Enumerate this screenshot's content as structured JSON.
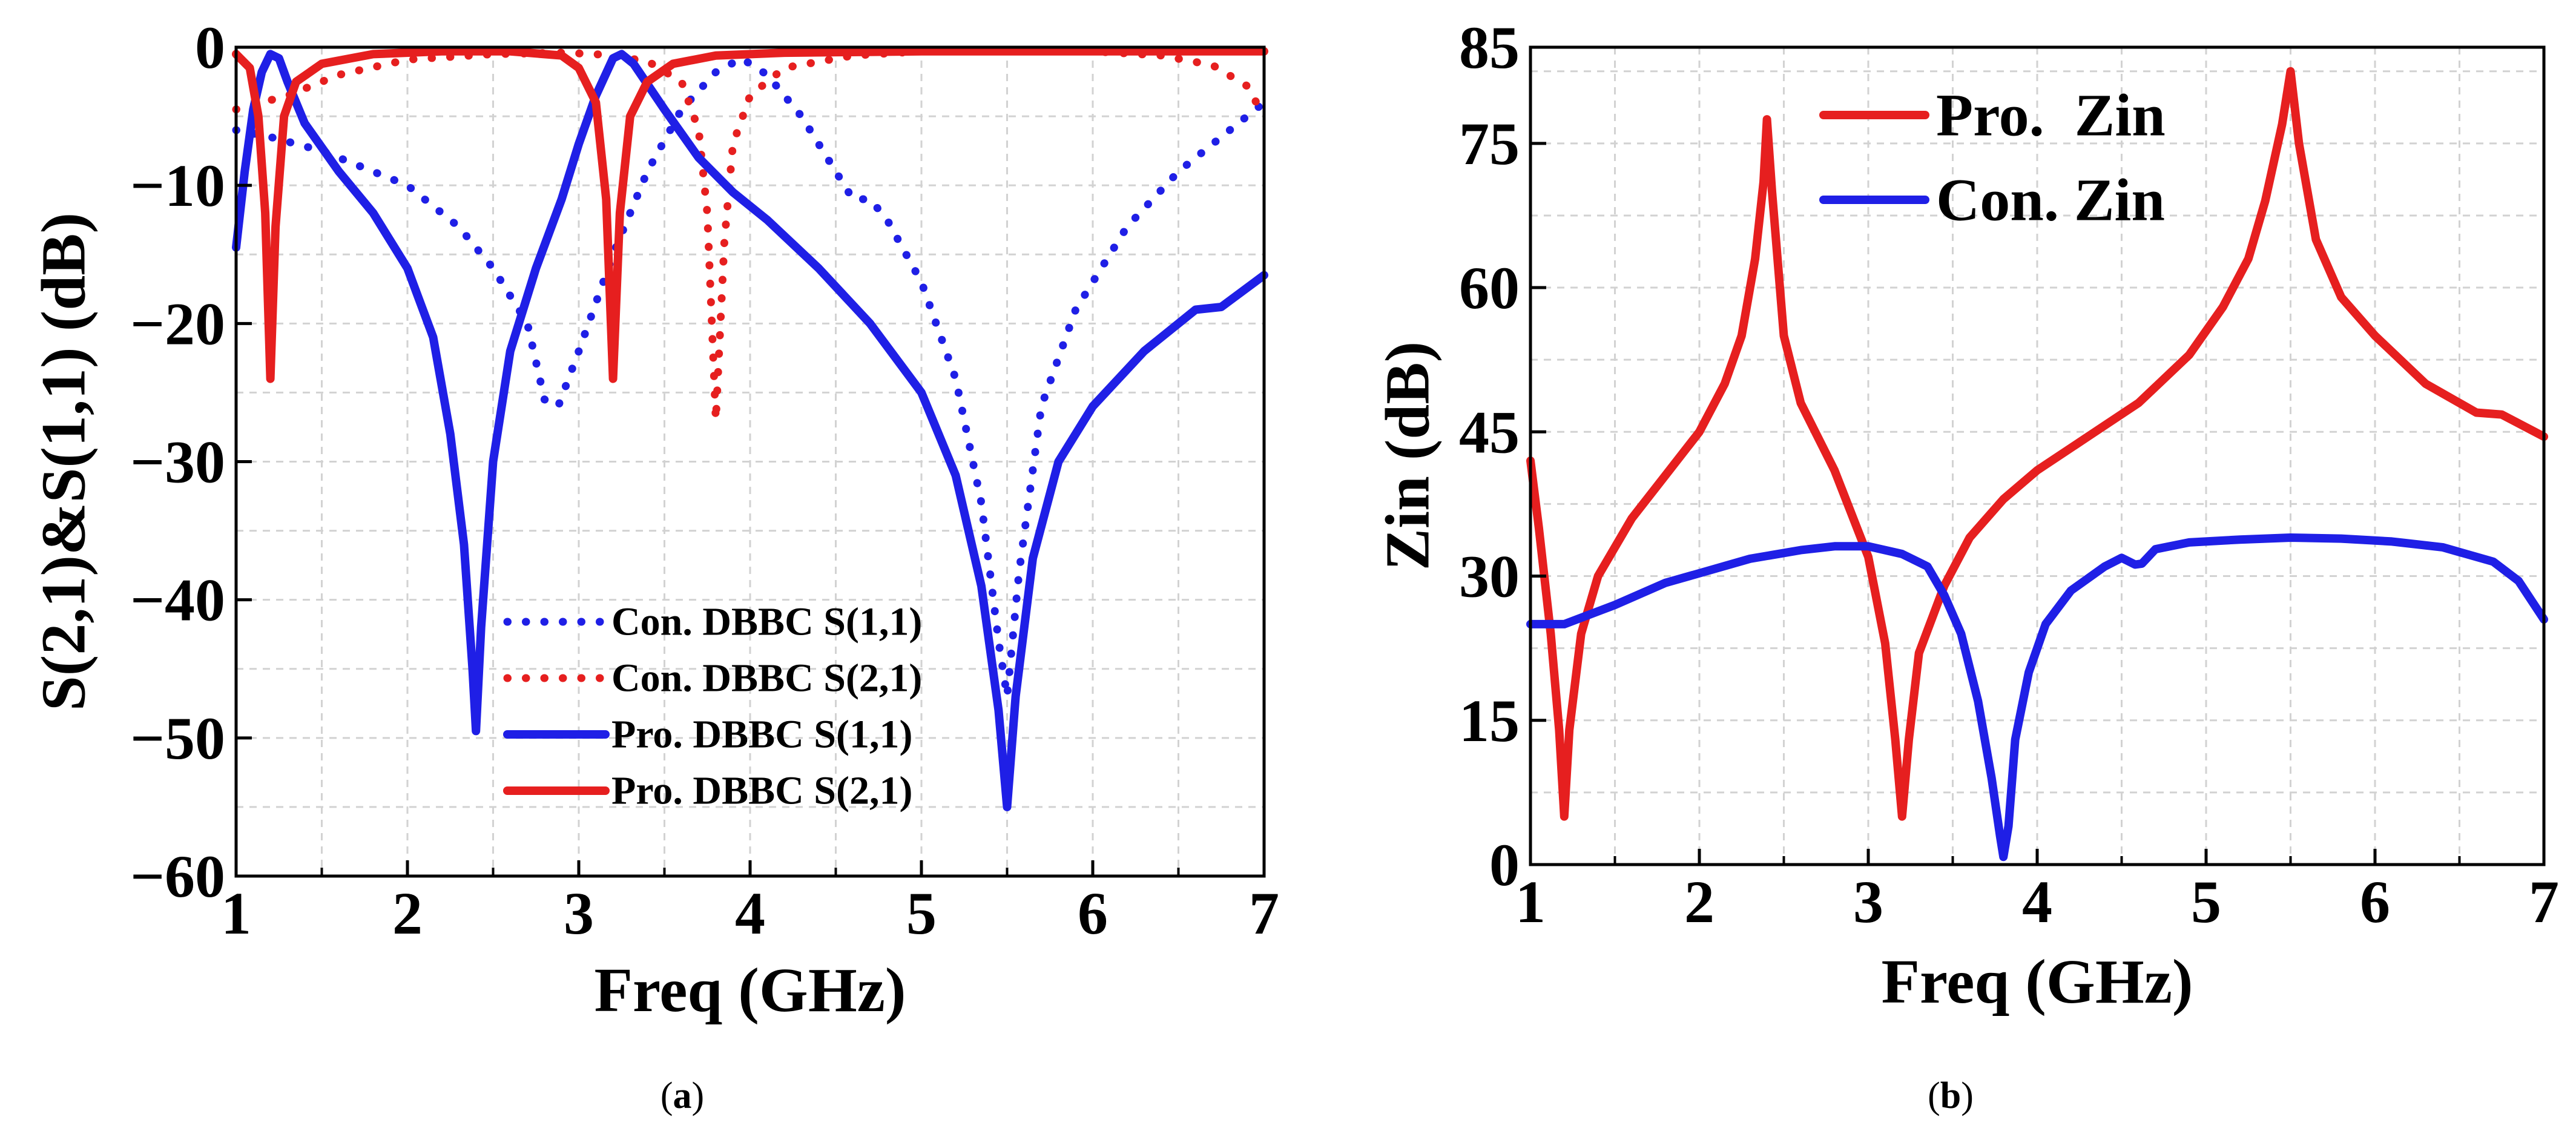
{
  "chart_data": [
    {
      "type": "line",
      "caption": "(a)",
      "caption_letter": "a",
      "xlabel": "Freq (GHz)",
      "ylabel": "S(2,1)&S(1,1) (dB)",
      "xlim": [
        1,
        7
      ],
      "ylim": [
        -60,
        0
      ],
      "xticks": [
        1,
        2,
        3,
        4,
        5,
        6,
        7
      ],
      "yticks": [
        0,
        -10,
        -20,
        -30,
        -40,
        -50,
        -60
      ],
      "ytick_labels": [
        "0",
        "−10",
        "−20",
        "−30",
        "−40",
        "−50",
        "−60"
      ],
      "grid": true,
      "legend_position": "lower-center",
      "series": [
        {
          "name": "Con. DBBC S(1,1)",
          "color": "#1f1fe6",
          "style": "dotted",
          "points": [
            [
              1,
              -6
            ],
            [
              1.2,
              -6.5
            ],
            [
              1.5,
              -7.5
            ],
            [
              2,
              -10
            ],
            [
              2.3,
              -13
            ],
            [
              2.5,
              -16
            ],
            [
              2.7,
              -20
            ],
            [
              2.8,
              -25.5
            ],
            [
              2.88,
              -26
            ],
            [
              3,
              -22
            ],
            [
              3.2,
              -15
            ],
            [
              3.4,
              -9
            ],
            [
              3.6,
              -4.5
            ],
            [
              3.8,
              -1.8
            ],
            [
              3.95,
              -0.8
            ],
            [
              4.1,
              -2
            ],
            [
              4.3,
              -5
            ],
            [
              4.5,
              -9
            ],
            [
              4.6,
              -11
            ],
            [
              4.7,
              -11
            ],
            [
              4.8,
              -12.5
            ],
            [
              5,
              -17
            ],
            [
              5.2,
              -24
            ],
            [
              5.35,
              -33
            ],
            [
              5.45,
              -43
            ],
            [
              5.5,
              -47
            ],
            [
              5.57,
              -38
            ],
            [
              5.7,
              -26
            ],
            [
              5.9,
              -19
            ],
            [
              6.2,
              -13
            ],
            [
              6.5,
              -9
            ],
            [
              6.8,
              -6
            ],
            [
              7,
              -4
            ]
          ]
        },
        {
          "name": "Con. DBBC S(2,1)",
          "color": "#e61f1f",
          "style": "dotted",
          "points": [
            [
              1,
              -4.5
            ],
            [
              1.3,
              -3.5
            ],
            [
              1.6,
              -2
            ],
            [
              2,
              -0.9
            ],
            [
              2.5,
              -0.5
            ],
            [
              2.9,
              -0.4
            ],
            [
              3.1,
              -0.5
            ],
            [
              3.4,
              -1
            ],
            [
              3.6,
              -2.5
            ],
            [
              3.7,
              -6
            ],
            [
              3.75,
              -12
            ],
            [
              3.8,
              -27
            ],
            [
              3.85,
              -14
            ],
            [
              3.9,
              -7
            ],
            [
              4,
              -3.5
            ],
            [
              4.2,
              -1.5
            ],
            [
              4.6,
              -0.6
            ],
            [
              5,
              -0.3
            ],
            [
              5.5,
              -0.2
            ],
            [
              6,
              -0.3
            ],
            [
              6.4,
              -0.6
            ],
            [
              6.7,
              -1.3
            ],
            [
              6.9,
              -2.8
            ],
            [
              7,
              -5
            ]
          ]
        },
        {
          "name": "Pro. DBBC S(1,1)",
          "color": "#1f1fe6",
          "style": "solid",
          "points": [
            [
              1,
              -14.5
            ],
            [
              1.05,
              -9
            ],
            [
              1.1,
              -4.5
            ],
            [
              1.15,
              -1.8
            ],
            [
              1.2,
              -0.5
            ],
            [
              1.25,
              -0.8
            ],
            [
              1.3,
              -2.5
            ],
            [
              1.4,
              -5.5
            ],
            [
              1.6,
              -9
            ],
            [
              1.8,
              -12
            ],
            [
              2,
              -16
            ],
            [
              2.15,
              -21
            ],
            [
              2.25,
              -28
            ],
            [
              2.33,
              -36
            ],
            [
              2.38,
              -45
            ],
            [
              2.4,
              -49.5
            ],
            [
              2.43,
              -42
            ],
            [
              2.5,
              -30
            ],
            [
              2.6,
              -22
            ],
            [
              2.75,
              -16
            ],
            [
              2.9,
              -11
            ],
            [
              3,
              -7
            ],
            [
              3.1,
              -3.5
            ],
            [
              3.2,
              -0.8
            ],
            [
              3.25,
              -0.5
            ],
            [
              3.32,
              -1.2
            ],
            [
              3.5,
              -4.5
            ],
            [
              3.7,
              -8
            ],
            [
              3.9,
              -10.5
            ],
            [
              4.1,
              -12.5
            ],
            [
              4.4,
              -16
            ],
            [
              4.7,
              -20
            ],
            [
              5,
              -25
            ],
            [
              5.2,
              -31
            ],
            [
              5.35,
              -39
            ],
            [
              5.45,
              -48
            ],
            [
              5.5,
              -55
            ],
            [
              5.55,
              -47
            ],
            [
              5.65,
              -37
            ],
            [
              5.8,
              -30
            ],
            [
              6,
              -26
            ],
            [
              6.3,
              -22
            ],
            [
              6.6,
              -19
            ],
            [
              6.75,
              -18.8
            ],
            [
              7,
              -16.5
            ]
          ]
        },
        {
          "name": "Pro. DBBC S(2,1)",
          "color": "#e61f1f",
          "style": "solid",
          "points": [
            [
              1,
              -0.5
            ],
            [
              1.08,
              -1.5
            ],
            [
              1.13,
              -5
            ],
            [
              1.17,
              -12
            ],
            [
              1.2,
              -24
            ],
            [
              1.23,
              -13
            ],
            [
              1.28,
              -5
            ],
            [
              1.35,
              -2.5
            ],
            [
              1.5,
              -1.2
            ],
            [
              1.8,
              -0.5
            ],
            [
              2.2,
              -0.3
            ],
            [
              2.6,
              -0.3
            ],
            [
              2.9,
              -0.6
            ],
            [
              3,
              -1.5
            ],
            [
              3.1,
              -4
            ],
            [
              3.16,
              -11
            ],
            [
              3.2,
              -24
            ],
            [
              3.24,
              -12
            ],
            [
              3.3,
              -5
            ],
            [
              3.4,
              -2.5
            ],
            [
              3.55,
              -1.2
            ],
            [
              3.8,
              -0.6
            ],
            [
              4.2,
              -0.4
            ],
            [
              5,
              -0.3
            ],
            [
              6,
              -0.3
            ],
            [
              7,
              -0.3
            ]
          ]
        }
      ]
    },
    {
      "type": "line",
      "caption": "(b)",
      "caption_letter": "b",
      "xlabel": "Freq (GHz)",
      "ylabel": "Zin (dB)",
      "xlim": [
        1,
        7
      ],
      "ylim": [
        0,
        85
      ],
      "xticks": [
        1,
        2,
        3,
        4,
        5,
        6,
        7
      ],
      "yticks": [
        0,
        15,
        30,
        45,
        60,
        75,
        85
      ],
      "ytick_labels": [
        "0",
        "15",
        "30",
        "45",
        "60",
        "75",
        "85"
      ],
      "grid": true,
      "legend_position": "top-left",
      "series": [
        {
          "name": "Pro.  Zin",
          "color": "#e61f1f",
          "style": "solid",
          "points": [
            [
              1,
              42
            ],
            [
              1.05,
              35
            ],
            [
              1.12,
              24
            ],
            [
              1.17,
              14
            ],
            [
              1.2,
              5
            ],
            [
              1.23,
              14
            ],
            [
              1.3,
              24
            ],
            [
              1.4,
              30
            ],
            [
              1.6,
              36
            ],
            [
              1.8,
              40.5
            ],
            [
              2,
              45
            ],
            [
              2.15,
              50
            ],
            [
              2.25,
              55
            ],
            [
              2.33,
              63
            ],
            [
              2.38,
              71
            ],
            [
              2.4,
              77.5
            ],
            [
              2.43,
              70
            ],
            [
              2.5,
              55
            ],
            [
              2.6,
              48
            ],
            [
              2.8,
              41
            ],
            [
              3,
              32
            ],
            [
              3.1,
              23
            ],
            [
              3.16,
              13
            ],
            [
              3.2,
              5
            ],
            [
              3.24,
              13
            ],
            [
              3.3,
              22
            ],
            [
              3.45,
              29
            ],
            [
              3.6,
              34
            ],
            [
              3.8,
              38
            ],
            [
              4,
              41
            ],
            [
              4.3,
              44.5
            ],
            [
              4.6,
              48
            ],
            [
              4.9,
              53
            ],
            [
              5.1,
              58
            ],
            [
              5.25,
              63
            ],
            [
              5.35,
              69
            ],
            [
              5.45,
              77
            ],
            [
              5.5,
              82.5
            ],
            [
              5.55,
              75
            ],
            [
              5.65,
              65
            ],
            [
              5.8,
              59
            ],
            [
              6,
              55
            ],
            [
              6.3,
              50
            ],
            [
              6.6,
              47
            ],
            [
              6.75,
              46.8
            ],
            [
              7,
              44.5
            ]
          ]
        },
        {
          "name": "Con. Zin",
          "color": "#1f1fe6",
          "style": "solid",
          "points": [
            [
              1,
              25
            ],
            [
              1.2,
              25
            ],
            [
              1.5,
              27
            ],
            [
              1.8,
              29.3
            ],
            [
              2,
              30.3
            ],
            [
              2.3,
              31.8
            ],
            [
              2.6,
              32.7
            ],
            [
              2.8,
              33.1
            ],
            [
              3,
              33.1
            ],
            [
              3.2,
              32.3
            ],
            [
              3.35,
              31
            ],
            [
              3.45,
              28
            ],
            [
              3.55,
              24
            ],
            [
              3.65,
              17
            ],
            [
              3.73,
              9
            ],
            [
              3.78,
              3
            ],
            [
              3.8,
              0.8
            ],
            [
              3.83,
              4
            ],
            [
              3.87,
              13
            ],
            [
              3.95,
              20
            ],
            [
              4.05,
              25
            ],
            [
              4.2,
              28.5
            ],
            [
              4.4,
              31
            ],
            [
              4.5,
              31.9
            ],
            [
              4.58,
              31.2
            ],
            [
              4.62,
              31.3
            ],
            [
              4.7,
              32.8
            ],
            [
              4.9,
              33.5
            ],
            [
              5.2,
              33.8
            ],
            [
              5.5,
              34
            ],
            [
              5.8,
              33.9
            ],
            [
              6.1,
              33.6
            ],
            [
              6.4,
              33
            ],
            [
              6.7,
              31.5
            ],
            [
              6.85,
              29.5
            ],
            [
              7,
              25.5
            ]
          ]
        }
      ]
    }
  ]
}
